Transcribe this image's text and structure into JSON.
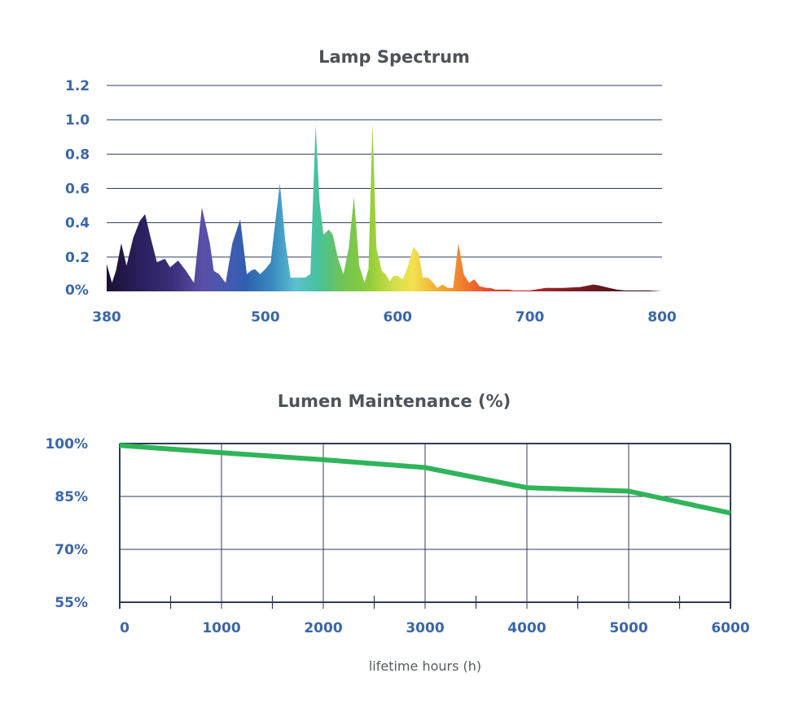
{
  "colors": {
    "title": "#4d5358",
    "tick": "#3b66a8",
    "grid": "#2f3b57",
    "line": "#2fb45a"
  },
  "chart_data": [
    {
      "type": "area",
      "title": "Lamp Spectrum",
      "xlabel": "",
      "ylabel": "",
      "xlim": [
        380,
        800
      ],
      "ylim": [
        0,
        1.2
      ],
      "x_ticks": [
        {
          "value": 380,
          "label": "380"
        },
        {
          "value": 500,
          "label": "500"
        },
        {
          "value": 600,
          "label": "600"
        },
        {
          "value": 700,
          "label": "700"
        },
        {
          "value": 800,
          "label": "800"
        }
      ],
      "y_ticks": [
        {
          "value": 0,
          "label": "0%"
        },
        {
          "value": 0.2,
          "label": "0.2"
        },
        {
          "value": 0.4,
          "label": "0.4"
        },
        {
          "value": 0.6,
          "label": "0.6"
        },
        {
          "value": 0.8,
          "label": "0.8"
        },
        {
          "value": 1.0,
          "label": "1.0"
        },
        {
          "value": 1.2,
          "label": "1.2"
        }
      ],
      "grid": true,
      "fill": "visible-spectrum gradient (violet to deep red)",
      "series": [
        {
          "x": [
            380,
            384,
            387,
            391,
            395,
            400,
            405,
            409,
            413,
            418,
            421,
            424,
            428,
            434,
            440,
            446,
            452,
            458,
            461,
            465,
            470,
            475,
            481,
            486,
            489,
            492,
            496,
            500,
            504,
            507,
            511,
            515,
            519,
            522,
            526,
            530,
            534,
            538,
            541,
            544,
            548,
            551,
            555,
            559,
            563,
            567,
            571,
            575,
            578,
            581,
            584,
            588,
            591,
            594,
            597,
            600,
            604,
            608,
            612,
            616,
            619,
            623,
            627,
            630,
            634,
            638,
            642,
            646,
            650,
            654,
            658,
            662,
            667,
            670,
            674,
            677,
            680,
            684,
            688,
            692,
            696,
            700,
            712,
            725,
            738,
            748,
            752,
            760,
            766,
            772,
            780,
            790,
            800
          ],
          "y": [
            0.16,
            0.05,
            0.12,
            0.28,
            0.15,
            0.31,
            0.41,
            0.45,
            0.32,
            0.17,
            0.18,
            0.19,
            0.14,
            0.18,
            0.12,
            0.05,
            0.49,
            0.28,
            0.12,
            0.1,
            0.05,
            0.28,
            0.42,
            0.1,
            0.12,
            0.13,
            0.1,
            0.13,
            0.17,
            0.37,
            0.63,
            0.3,
            0.08,
            0.08,
            0.08,
            0.08,
            0.1,
            0.97,
            0.52,
            0.33,
            0.36,
            0.33,
            0.19,
            0.1,
            0.25,
            0.55,
            0.15,
            0.05,
            0.13,
            0.98,
            0.25,
            0.12,
            0.1,
            0.06,
            0.09,
            0.09,
            0.07,
            0.15,
            0.26,
            0.22,
            0.08,
            0.08,
            0.05,
            0.02,
            0.04,
            0.02,
            0.02,
            0.28,
            0.1,
            0.05,
            0.07,
            0.03,
            0.02,
            0.02,
            0.01,
            0.01,
            0.01,
            0.01,
            0.005,
            0.005,
            0.005,
            0.005,
            0.02,
            0.02,
            0.025,
            0.04,
            0.035,
            0.02,
            0.01,
            0.005,
            0.005,
            0.005,
            0.0
          ]
        }
      ]
    },
    {
      "type": "line",
      "title": "Lumen Maintenance (%)",
      "xlabel": "lifetime hours (h)",
      "ylabel": "",
      "xlim": [
        0,
        6000
      ],
      "ylim": [
        55,
        100
      ],
      "x_ticks": [
        {
          "value": 0,
          "label": "0"
        },
        {
          "value": 1000,
          "label": "1000"
        },
        {
          "value": 2000,
          "label": "2000"
        },
        {
          "value": 3000,
          "label": "3000"
        },
        {
          "value": 4000,
          "label": "4000"
        },
        {
          "value": 5000,
          "label": "5000"
        },
        {
          "value": 6000,
          "label": "6000"
        }
      ],
      "y_ticks": [
        {
          "value": 55,
          "label": "55%"
        },
        {
          "value": 70,
          "label": "70%"
        },
        {
          "value": 85,
          "label": "85%"
        },
        {
          "value": 100,
          "label": "100%"
        }
      ],
      "minor_x_ticks": [
        500,
        1500,
        2500,
        3500,
        4500,
        5500
      ],
      "grid": true,
      "series": [
        {
          "x": [
            0,
            1000,
            2000,
            3000,
            4000,
            5000,
            6000
          ],
          "y": [
            99.5,
            97.4,
            95.4,
            93.2,
            87.5,
            86.5,
            80.3
          ]
        }
      ]
    }
  ]
}
